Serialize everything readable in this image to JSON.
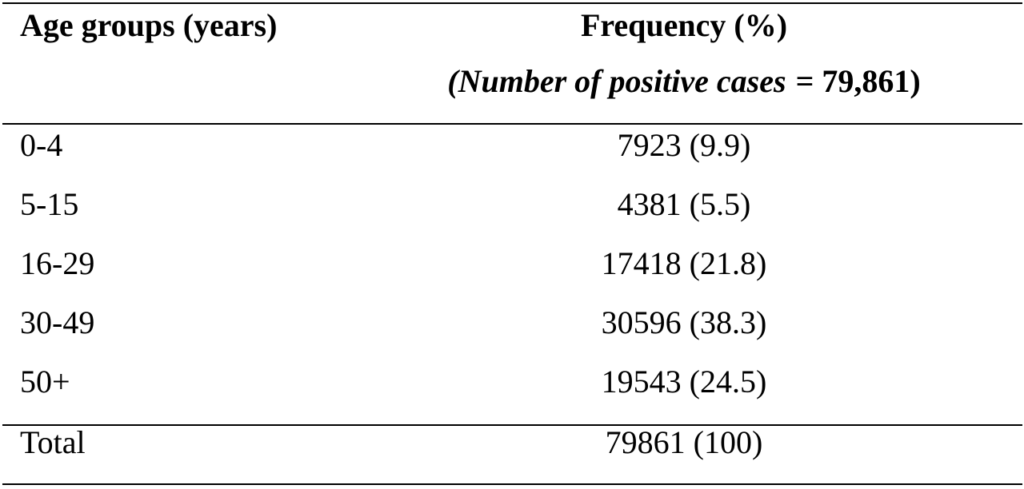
{
  "table": {
    "columns": [
      "Age groups (years)",
      "Frequency (%)"
    ],
    "subheader": {
      "italic_part": "(Number of positive cases",
      "bold_part": "= 79,861)"
    },
    "rows": [
      [
        "0-4",
        "7923 (9.9)"
      ],
      [
        "5-15",
        "4381 (5.5)"
      ],
      [
        "16-29",
        "17418 (21.8)"
      ],
      [
        "30-49",
        "30596 (38.3)"
      ],
      [
        "50+",
        "19543 (24.5)"
      ]
    ],
    "total": [
      "Total",
      "79861 (100)"
    ]
  }
}
